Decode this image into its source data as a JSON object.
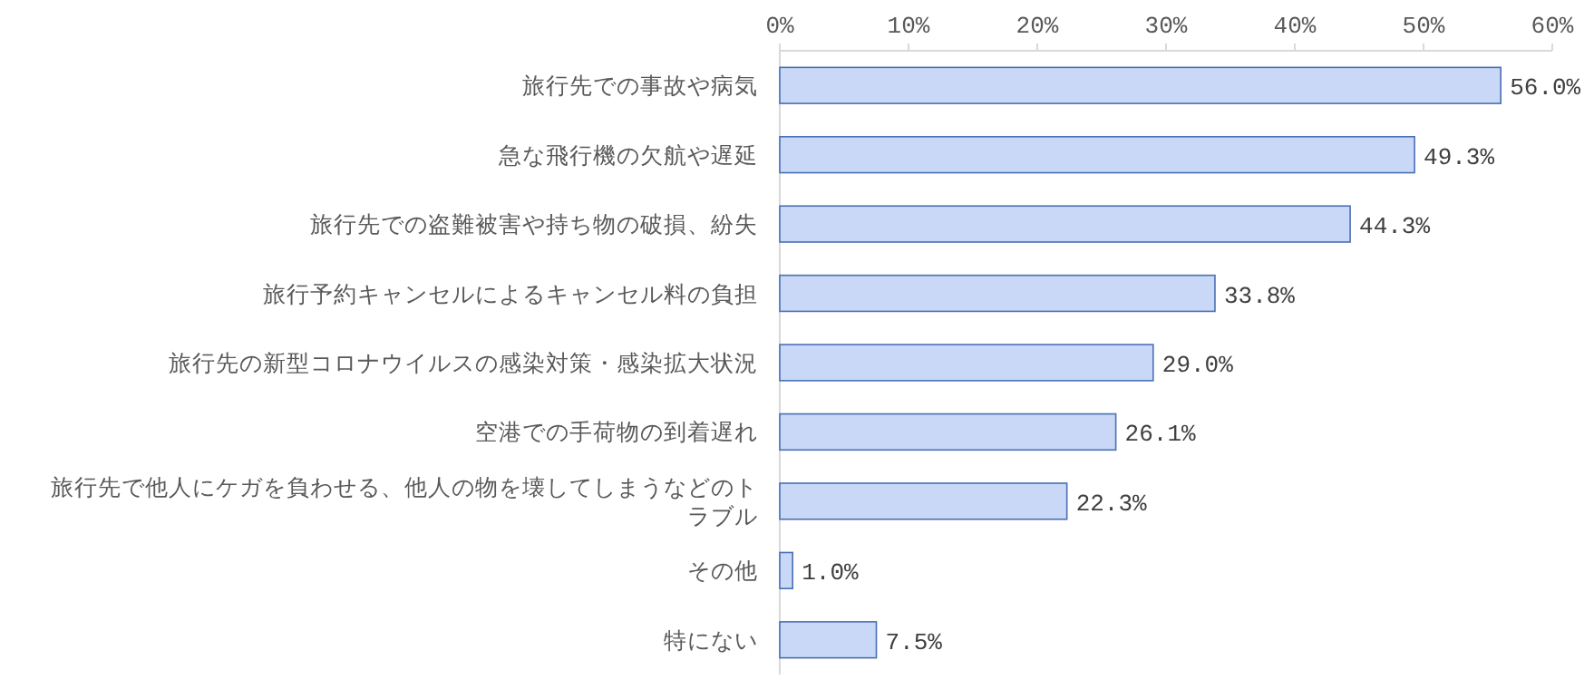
{
  "chart_data": {
    "type": "bar",
    "orientation": "horizontal",
    "categories": [
      "旅行先での事故や病気",
      "急な飛行機の欠航や遅延",
      "旅行先での盗難被害や持ち物の破損、紛失",
      "旅行予約キャンセルによるキャンセル料の負担",
      "旅行先の新型コロナウイルスの感染対策・感染拡大状況",
      "空港での手荷物の到着遅れ",
      "旅行先で他人にケガを負わせる、他人の物を壊してしまうなどのトラブル",
      "その他",
      "特にない"
    ],
    "values": [
      56.0,
      49.3,
      44.3,
      33.8,
      29.0,
      26.1,
      22.3,
      1.0,
      7.5
    ],
    "value_labels": [
      "56.0%",
      "49.3%",
      "44.3%",
      "33.8%",
      "29.0%",
      "26.1%",
      "22.3%",
      "1.0%",
      "7.5%"
    ],
    "color": "#c9d8f7",
    "xlim": [
      0,
      60
    ],
    "xticks": [
      {
        "value": 0,
        "label": "0%"
      },
      {
        "value": 10,
        "label": "10%"
      },
      {
        "value": 20,
        "label": "20%"
      },
      {
        "value": 30,
        "label": "30%"
      },
      {
        "value": 40,
        "label": "40%"
      },
      {
        "value": 50,
        "label": "50%"
      },
      {
        "value": 60,
        "label": "60%"
      }
    ]
  }
}
